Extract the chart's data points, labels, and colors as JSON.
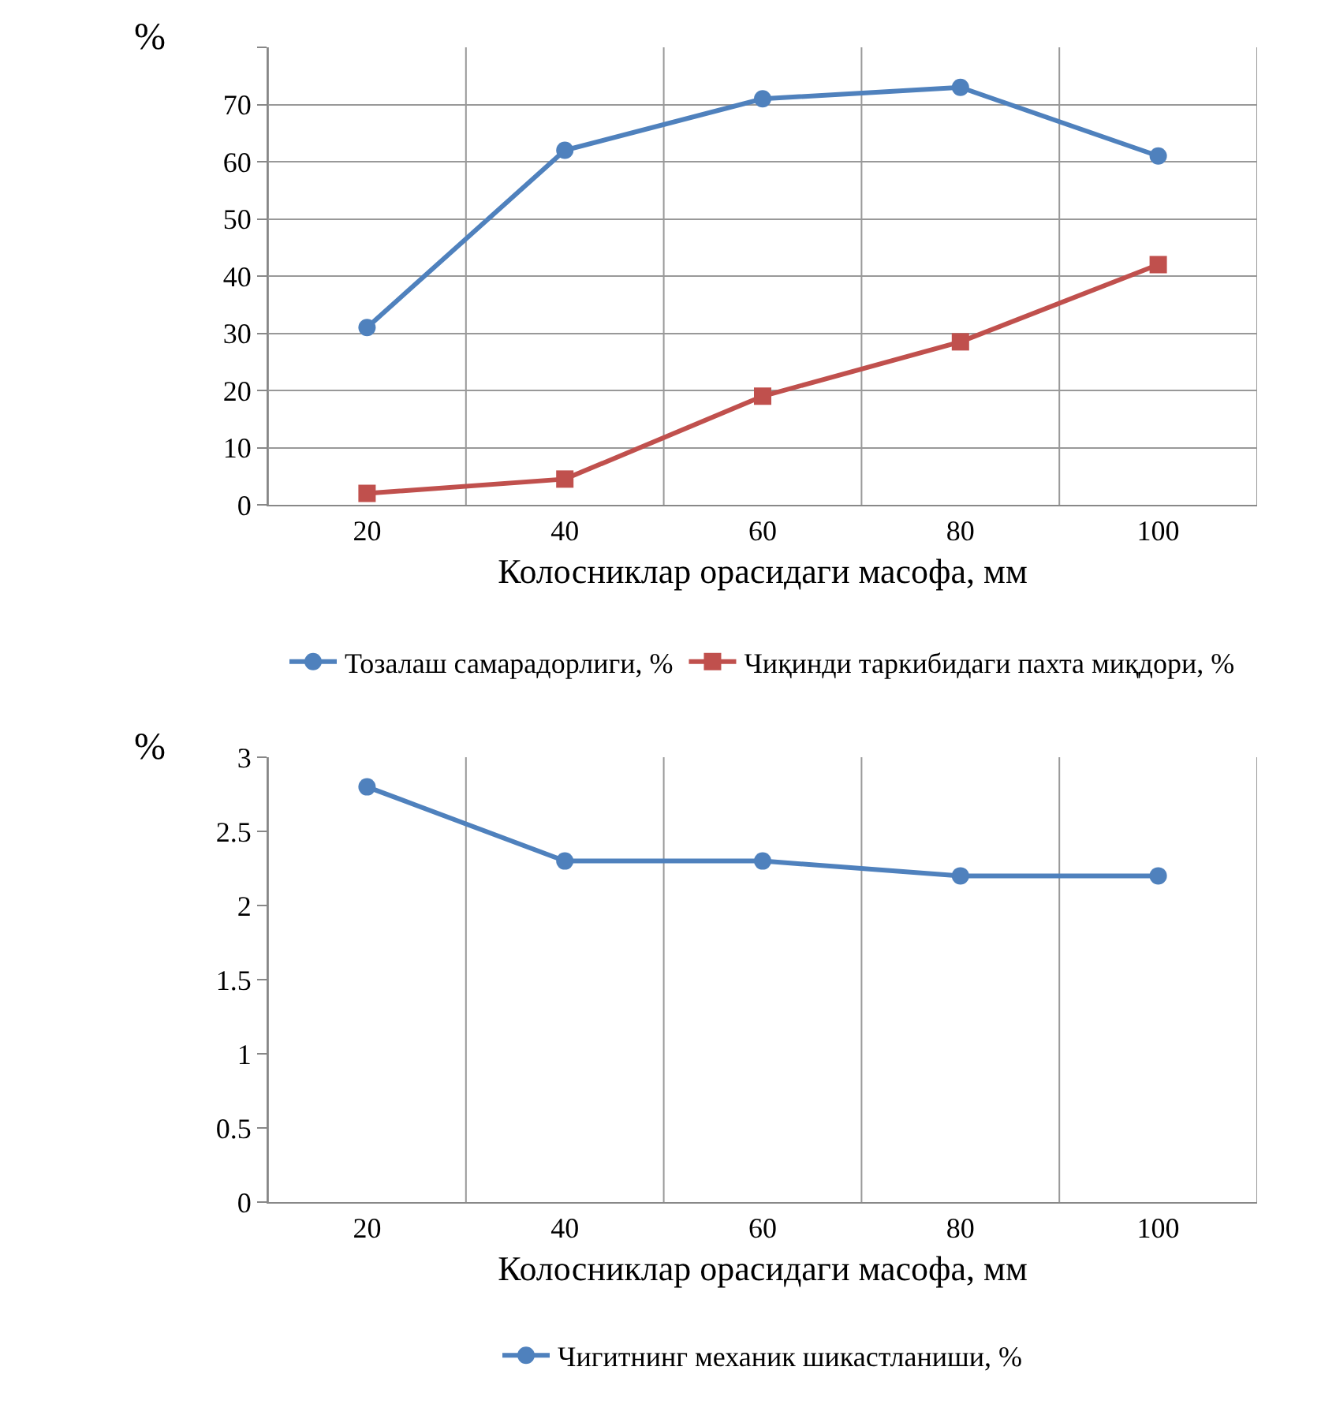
{
  "chart_data": [
    {
      "type": "line",
      "xlabel": "Колосниклар орасидаги масофа, мм",
      "ylabel": "%",
      "categories": [
        "20",
        "40",
        "60",
        "80",
        "100"
      ],
      "ylim": [
        0,
        80
      ],
      "yticks": [
        0,
        10,
        20,
        30,
        40,
        50,
        60,
        70,
        {
          "value": 80,
          "label": null
        }
      ],
      "grid": true,
      "legend": "bottom",
      "series": [
        {
          "name": "Тозалаш самарадорлиги, %",
          "color": "#4f81bd",
          "marker": "circle",
          "values": [
            31,
            62,
            71,
            73,
            61
          ]
        },
        {
          "name": "Чиқинди таркибидаги пахта миқдори, %",
          "color": "#c0504d",
          "marker": "square",
          "values": [
            2,
            4.5,
            19,
            28.5,
            42
          ]
        }
      ]
    },
    {
      "type": "line",
      "xlabel": "Колосниклар орасидаги масофа, мм",
      "ylabel": "%",
      "categories": [
        "20",
        "40",
        "60",
        "80",
        "100"
      ],
      "ylim": [
        0,
        3
      ],
      "yticks": [
        0,
        0.5,
        1,
        1.5,
        2,
        2.5,
        3
      ],
      "grid": "x",
      "legend": "bottom",
      "series": [
        {
          "name": "Чигитнинг механик шикастланиши, %",
          "color": "#4f81bd",
          "marker": "circle",
          "values": [
            2.8,
            2.3,
            2.3,
            2.2,
            2.2
          ]
        }
      ]
    }
  ]
}
